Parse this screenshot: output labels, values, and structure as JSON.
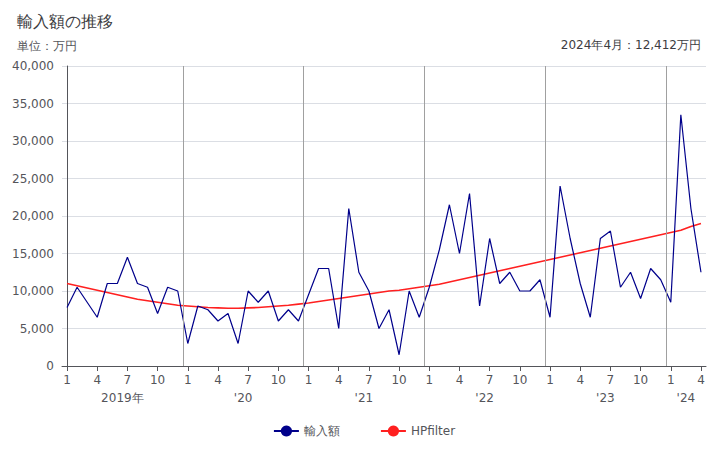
{
  "chart_data": {
    "type": "line",
    "title": "輸入額の推移",
    "y_label": "単位：万円",
    "annotation": "2024年4月：12,412万円",
    "categories": [
      "1",
      null,
      null,
      "4",
      null,
      null,
      "7",
      null,
      null,
      "10",
      null,
      null,
      "1",
      null,
      null,
      "4",
      null,
      null,
      "7",
      null,
      null,
      "10",
      null,
      null,
      "1",
      null,
      null,
      "4",
      null,
      null,
      "7",
      null,
      null,
      "10",
      null,
      null,
      "1",
      null,
      null,
      "4",
      null,
      null,
      "7",
      null,
      null,
      "10",
      null,
      null,
      "1",
      null,
      null,
      "4",
      null,
      null,
      "7",
      null,
      null,
      "10",
      null,
      null,
      "1",
      null,
      null,
      "4"
    ],
    "year_labels": [
      "2019年",
      "'20",
      "'21",
      "'22",
      "'23",
      "'24"
    ],
    "year_dividers": [
      11.5,
      23.5,
      35.5,
      47.5,
      59.5
    ],
    "series": [
      {
        "name": "輸入額",
        "color": "#00008B",
        "values": [
          7800,
          10500,
          8500,
          6500,
          11000,
          11000,
          14500,
          11000,
          10500,
          7000,
          10500,
          10000,
          3000,
          8000,
          7500,
          6000,
          7000,
          3000,
          10000,
          8500,
          10000,
          6000,
          7500,
          6000,
          9500,
          13000,
          13000,
          5000,
          21000,
          12500,
          10000,
          5000,
          7500,
          1500,
          10000,
          6500,
          10500,
          15500,
          21500,
          15000,
          23000,
          8000,
          17000,
          11000,
          12500,
          10000,
          10000,
          11500,
          6500,
          24000,
          17000,
          11000,
          6500,
          17000,
          18000,
          10500,
          12500,
          9000,
          13000,
          11500,
          8500,
          33500,
          21000,
          12500
        ]
      },
      {
        "name": "HPfilter",
        "color": "#FF2020",
        "values": [
          11000,
          10700,
          10400,
          10100,
          9800,
          9500,
          9200,
          8900,
          8700,
          8500,
          8300,
          8100,
          8000,
          7900,
          7800,
          7750,
          7700,
          7700,
          7750,
          7800,
          7900,
          8000,
          8100,
          8250,
          8400,
          8600,
          8800,
          9000,
          9200,
          9400,
          9600,
          9800,
          10000,
          10100,
          10300,
          10500,
          10700,
          10900,
          11200,
          11500,
          11800,
          12100,
          12400,
          12700,
          13000,
          13300,
          13600,
          13900,
          14200,
          14500,
          14800,
          15100,
          15400,
          15700,
          16000,
          16300,
          16600,
          16900,
          17200,
          17500,
          17800,
          18100,
          18600,
          19000
        ]
      }
    ],
    "divider_color": "#A0A0A0",
    "ylim": [
      0,
      40000
    ],
    "yticks": [
      0,
      {
        "value": 5000,
        "label": "5,000"
      },
      {
        "value": 10000,
        "label": "10,000"
      },
      {
        "value": 15000,
        "label": "15,000"
      },
      {
        "value": 20000,
        "label": "20,000"
      },
      {
        "value": 25000,
        "label": "25,000"
      },
      {
        "value": 30000,
        "label": "30,000"
      },
      {
        "value": 35000,
        "label": "35,000"
      },
      {
        "value": 40000,
        "label": "40,000"
      }
    ],
    "grid": true,
    "legend": "bottom"
  }
}
